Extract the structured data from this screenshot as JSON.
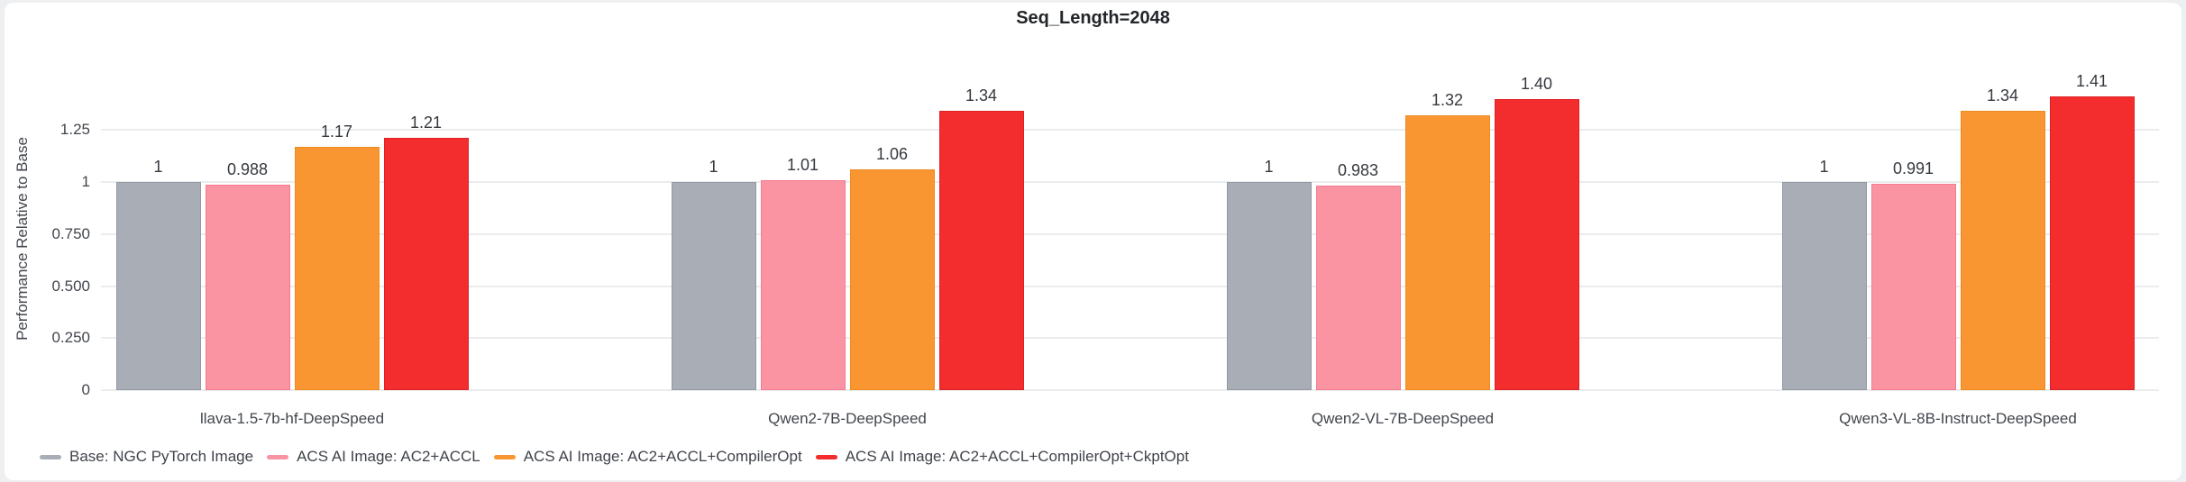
{
  "chart_data": {
    "type": "bar",
    "title": "Seq_Length=2048",
    "xlabel": "",
    "ylabel": "Performance Relative to Base",
    "ylim": [
      0,
      1.445
    ],
    "grid": "horizontal",
    "legend_position": "bottom-left",
    "categories": [
      "llava-1.5-7b-hf-DeepSpeed",
      "Qwen2-7B-DeepSpeed",
      "Qwen2-VL-7B-DeepSpeed",
      "Qwen3-VL-8B-Instruct-DeepSpeed"
    ],
    "yticks": [
      {
        "value": 1.25,
        "label": "1.25"
      },
      {
        "value": 1.0,
        "label": "1"
      },
      {
        "value": 0.75,
        "label": "0.750"
      },
      {
        "value": 0.5,
        "label": "0.500"
      },
      {
        "value": 0.25,
        "label": "0.250"
      },
      {
        "value": 0,
        "label": "0"
      }
    ],
    "series": [
      {
        "name": "Base: NGC PyTorch Image",
        "color": "#a9aeb6",
        "border_color": "#9299a3",
        "values": [
          1,
          1,
          1,
          1
        ],
        "value_labels": [
          "1",
          "1",
          "1",
          "1"
        ]
      },
      {
        "name": "ACS AI Image: AC2+ACCL",
        "color": "#fa93a2",
        "border_color": "#f37d90",
        "values": [
          0.988,
          1.01,
          0.983,
          0.991
        ],
        "value_labels": [
          "0.988",
          "1.01",
          "0.983",
          "0.991"
        ]
      },
      {
        "name": "ACS AI Image: AC2+ACCL+CompilerOpt",
        "color": "#fa9632",
        "border_color": "#ee8a20",
        "values": [
          1.17,
          1.06,
          1.32,
          1.34
        ],
        "value_labels": [
          "1.17",
          "1.06",
          "1.32",
          "1.34"
        ]
      },
      {
        "name": "ACS AI Image: AC2+ACCL+CompilerOpt+CkptOpt",
        "color": "#f32c2e",
        "border_color": "#dd2125",
        "values": [
          1.21,
          1.34,
          1.4,
          1.41
        ],
        "value_labels": [
          "1.21",
          "1.34",
          "1.40",
          "1.41"
        ]
      }
    ]
  }
}
